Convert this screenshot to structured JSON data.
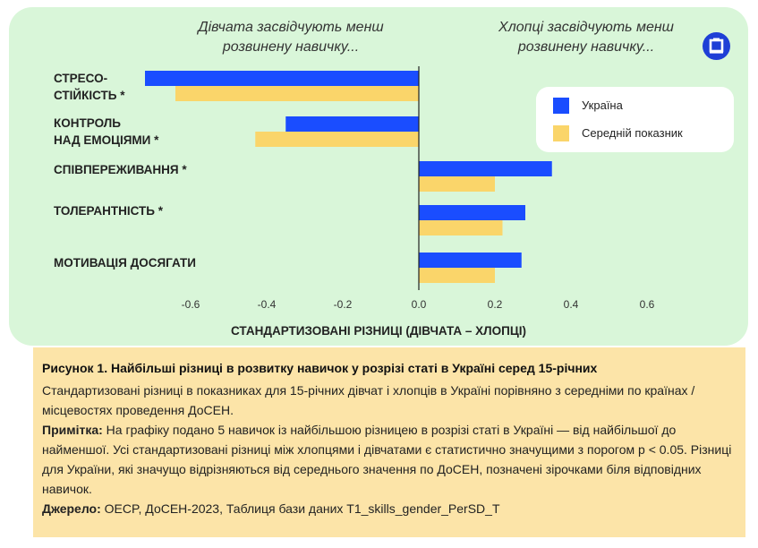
{
  "chart_data": {
    "type": "bar",
    "orientation": "horizontal",
    "categories": [
      "СТРЕСО-\nСТІЙКІСТЬ *",
      "КОНТРОЛЬ\nНАД ЕМОЦІЯМИ *",
      "СПІВПЕРЕЖИВАННЯ *",
      "ТОЛЕРАНТНІСТЬ *",
      "МОТИВАЦІЯ ДОСЯГАТИ"
    ],
    "series": [
      {
        "name": "Україна",
        "color": "#1a4dff",
        "values": [
          -0.72,
          -0.35,
          0.35,
          0.28,
          0.27
        ]
      },
      {
        "name": "Середній показник",
        "color": "#fad56a",
        "values": [
          -0.64,
          -0.43,
          0.2,
          0.22,
          0.2
        ]
      }
    ],
    "xlabel": "СТАНДАРТИЗОВАНІ РІЗНИЦІ (ДІВЧАТА – ХЛОПЦІ)",
    "xlim": [
      -0.72,
      0.72
    ],
    "xticks": [
      -0.6,
      -0.4,
      -0.2,
      0.0,
      0.2,
      0.4,
      0.6
    ],
    "xtick_labels": [
      "-0.6",
      "-0.4",
      "-0.2",
      "0.0",
      "0.2",
      "0.4",
      "0.6"
    ],
    "grid": false,
    "legend_position": "top-right",
    "annotations": {
      "left_heading": "Дівчата засвідчують менш розвинену навичку...",
      "right_heading": "Хлопці засвідчують менш розвинену навичку..."
    }
  },
  "caption": {
    "title": "Рисунок 1. Найбільші різниці в розвитку навичок у розрізі статі в Україні серед 15-річних",
    "description": "Стандартизовані різниці в показниках для 15-річних дівчат і хлопців в Україні порівняно з середніми по країнах / місцевостях проведення ДоСЕН.",
    "note_label": "Примітка:",
    "note_text": " На графіку подано 5 навичок із найбільшою різницею в розрізі статі в Україні — від найбільшої до найменшої. Усі стандартизовані різниці між хлопцями і дівчатами є статистично значущими з порогом p < 0.05. Різниці для України, які значущо відрізняються від середнього значення по ДоСЕН, позначені зірочками біля відповідних навичок.",
    "source_label": "Джерело:",
    "source_text": " OECP, ДоСЕН-2023, Таблиця бази даних T1_skills_gender_PerSD_T"
  },
  "logo": {
    "icon": "oecd-logo-icon",
    "color": "#1f3fd6"
  }
}
